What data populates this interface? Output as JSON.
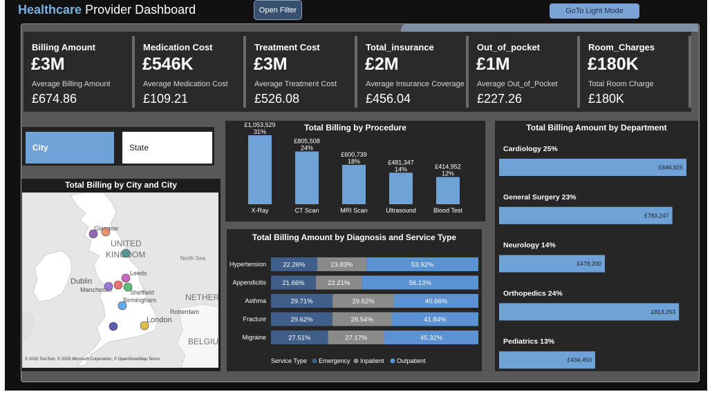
{
  "header": {
    "title_accent": "Healthcare",
    "title_rest": " Provider Dashboard",
    "open_filter": "Open Filter",
    "light_mode": "GoTo Light Mode"
  },
  "kpis": [
    {
      "title": "Billing Amount",
      "value": "£3M",
      "sub": "Average Billing Amount",
      "avg": "£674.86"
    },
    {
      "title": "Medication Cost",
      "value": "£546K",
      "sub": "Average Medication Cost",
      "avg": "£109.21"
    },
    {
      "title": "Treatment Cost",
      "value": "£3M",
      "sub": "Average Treatment Cost",
      "avg": "£526.08"
    },
    {
      "title": "Total_insurance",
      "value": "£2M",
      "sub": "Average Insurance Coverage",
      "avg": "£456.04"
    },
    {
      "title": "Out_of_pocket",
      "value": "£1M",
      "sub": "Average Out_of_Pocket",
      "avg": "£227.26"
    },
    {
      "title": "Room_Charges",
      "value": "£180K",
      "sub": "Total Room Charge",
      "avg": "£180K"
    }
  ],
  "slicer": {
    "city": "City",
    "state": "State"
  },
  "map": {
    "title": "Total Billing by City and City",
    "labels": [
      {
        "text": "UNITED",
        "kind": "country"
      },
      {
        "text": "KINGDOM",
        "kind": "country"
      },
      {
        "text": "Glasgow",
        "kind": "city"
      },
      {
        "text": "Leeds",
        "kind": "city"
      },
      {
        "text": "Dublin",
        "kind": "capital"
      },
      {
        "text": "Manchester",
        "kind": "city"
      },
      {
        "text": "Sheffield",
        "kind": "city"
      },
      {
        "text": "Birmingham",
        "kind": "city"
      },
      {
        "text": "London",
        "kind": "capital"
      },
      {
        "text": "North Sea",
        "kind": "sea"
      },
      {
        "text": "Rotterdam",
        "kind": "city"
      },
      {
        "text": "NETHERLA",
        "kind": "country"
      },
      {
        "text": "BELGIUM",
        "kind": "country"
      }
    ],
    "markers_colors": [
      "#7b4fa8",
      "#e8845a",
      "#3f8c8c",
      "#c050b0",
      "#e85a5a",
      "#3fb060",
      "#8a5fd0",
      "#4a9ae8",
      "#4040a0",
      "#d8b030"
    ],
    "attribution": "© 2025 TomTom, © 2025 Microsoft Corporation, © OpenStreetMap  Terms"
  },
  "procedure": {
    "title": "Total Billing by Procedure",
    "chart_data": {
      "type": "bar",
      "title": "Total Billing by Procedure",
      "categories": [
        "X-Ray",
        "CT Scan",
        "MRI Scan",
        "Ultrasound",
        "Blood Test"
      ],
      "values": [
        1053529,
        805508,
        600739,
        481347,
        414952
      ],
      "value_labels": [
        "£1,053,529",
        "£805,508",
        "£600,739",
        "£481,347",
        "£414,952"
      ],
      "pct_labels": [
        "31%",
        "24%",
        "18%",
        "14%",
        "12%"
      ],
      "color": "#6fa3d8"
    }
  },
  "diagnosis": {
    "title": "Total Billing Amount by Diagnosis and Service Type",
    "legend_title": "Service Type",
    "chart_data": {
      "type": "bar",
      "stacked": true,
      "orientation": "horizontal",
      "title": "Total Billing Amount by Diagnosis and Service Type",
      "categories": [
        "Hypertension",
        "Appendicitis",
        "Asthma",
        "Fracture",
        "Migraine"
      ],
      "series": [
        {
          "name": "Emergency",
          "color": "#3f5f8a",
          "values": [
            22.26,
            21.66,
            29.71,
            29.62,
            27.51
          ]
        },
        {
          "name": "Inpatient",
          "color": "#8a8a8a",
          "values": [
            23.83,
            22.21,
            29.62,
            28.54,
            27.17
          ]
        },
        {
          "name": "Outpatient",
          "color": "#5b92d4",
          "values": [
            53.92,
            56.13,
            40.66,
            41.84,
            45.32
          ]
        }
      ]
    }
  },
  "department": {
    "title": "Total Billing Amount by Department",
    "chart_data": {
      "type": "bar",
      "orientation": "horizontal",
      "title": "Total Billing Amount by Department",
      "categories": [
        "Cardiology 25%",
        "General Surgery 23%",
        "Neurology 14%",
        "Orthopedics 24%",
        "Pediatrics 13%"
      ],
      "values": [
        846925,
        783247,
        478200,
        813253,
        434450
      ],
      "value_labels": [
        "£846,925",
        "£783,247",
        "£478,200",
        "£813,253",
        "£434,450"
      ],
      "color": "#6fa3d8"
    }
  }
}
